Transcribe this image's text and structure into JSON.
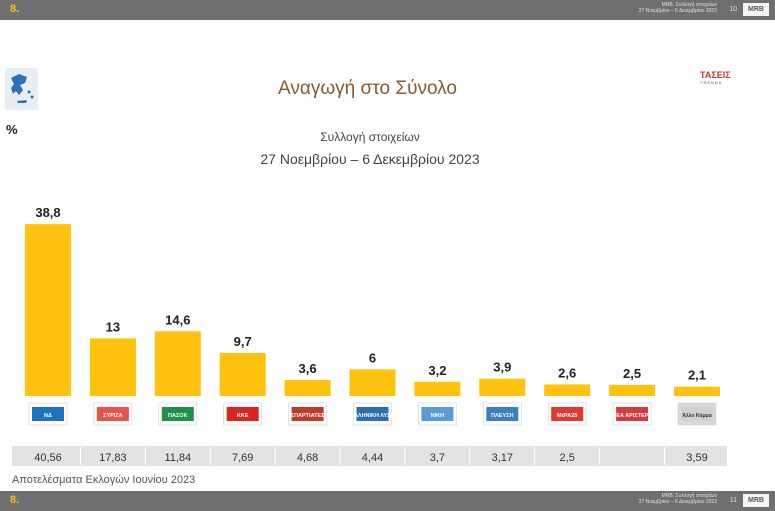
{
  "header": {
    "slide_number": "8.",
    "caption_line1": "MRB, Συλλογή στοιχείων",
    "caption_line2": "27 Νοεμβρίου – 6 Δεκεμβρίου 2023",
    "page": "10",
    "logo": "MRB"
  },
  "footer": {
    "slide_number": "8.",
    "caption_line1": "MRB, Συλλογή στοιχείων",
    "caption_line2": "27 Νοεμβρίου – 6 Δεκεμβρίου 2023",
    "page": "11",
    "logo": "MRB"
  },
  "brand": {
    "name": "ΤΑΣΕΙΣ",
    "sub": "TRENDS"
  },
  "percent_label": "%",
  "results_label": "Αποτελέσματα Εκλογών Ιουνίου 2023",
  "chart_data": {
    "type": "bar",
    "title": "Αναγωγή στο Σύνολο",
    "subtitle": "Συλλογή στοιχείων",
    "date_range": "27 Νοεμβρίου – 6 Δεκεμβρίου  2023",
    "ylabel": "%",
    "ylim": [
      0,
      40
    ],
    "grid": false,
    "bar_color": "#ffc20e",
    "categories": [
      "ΝΔ",
      "ΣΥΡΙΖΑ",
      "ΠΑΣΟΚ",
      "ΚΚΕ",
      "ΣΠΑΡΤΙΑΤΕΣ",
      "ΕΛΛΗΝΙΚΗ ΛΥΣΗ",
      "ΝΙΚΗ",
      "ΠΛΕΥΣΗ ΕΛΕΥΘΕΡΙΑΣ",
      "ΜέΡΑ25",
      "ΝΕΑ ΑΡΙΣΤΕΡΑ",
      "Άλλο Κόμμα"
    ],
    "values": [
      38.8,
      13,
      14.6,
      9.7,
      3.6,
      6,
      3.2,
      3.9,
      2.6,
      2.5,
      2.1
    ],
    "value_labels": [
      "38,8",
      "13",
      "14,6",
      "9,7",
      "3,6",
      "6",
      "3,2",
      "3,9",
      "2,6",
      "2,5",
      "2,1"
    ],
    "logo_labels": [
      "ΝΔ",
      "ΣΥΡΙΖΑ",
      "ΠΑΣΟΚ",
      "ΚΚΕ",
      "ΣΠΑΡΤΙΑΤΕΣ",
      "ΕΛΛΗΝΙΚΗ ΛΥΣΗ",
      "ΝΙΚΗ",
      "ΠΛΕΥΣΗ",
      "ΜέΡΑ25",
      "ΝΕΑ ΑΡΙΣΤΕΡΑ",
      "Άλλο Κόμμα"
    ],
    "logo_colors": [
      "#1e73be",
      "#e8534a",
      "#1f8f4a",
      "#d7261e",
      "#c0392b",
      "#2b6fb3",
      "#5a9bd5",
      "#3a7fbf",
      "#e03a2f",
      "#d63a3a",
      "#bbbbbb"
    ],
    "previous_results": [
      "40,56",
      "17,83",
      "11,84",
      "7,69",
      "4,68",
      "4,44",
      "3,7",
      "3,17",
      "2,5",
      "",
      "3,59"
    ]
  }
}
